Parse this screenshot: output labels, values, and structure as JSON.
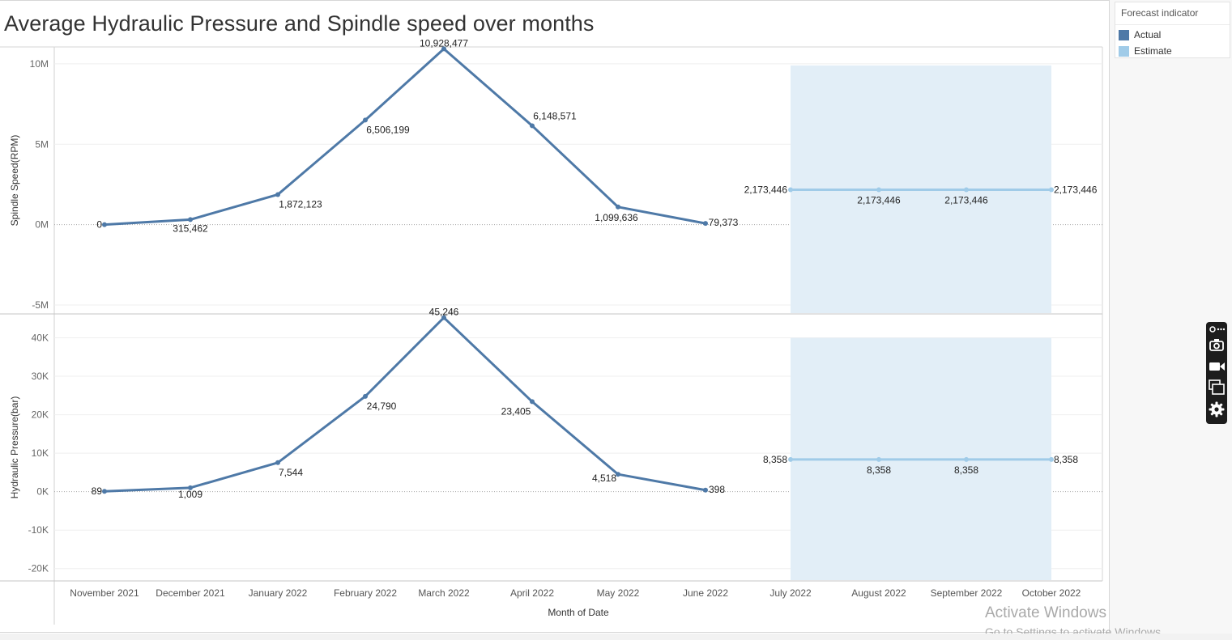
{
  "title": "Average Hydraulic Pressure and Spindle speed over months",
  "legend": {
    "title": "Forecast indicator",
    "items": [
      {
        "label": "Actual",
        "color": "#4e79a7"
      },
      {
        "label": "Estimate",
        "color": "#a0cbe8"
      }
    ]
  },
  "colors": {
    "actual": "#4e79a7",
    "estimate": "#a0cbe8",
    "forecast_band": "#e2eef7"
  },
  "watermark": {
    "line1": "Activate Windows",
    "line2": "Go to Settings to activate Windows."
  },
  "toolbar_icons": [
    "pin-icon",
    "more-icon",
    "camera-icon",
    "video-icon",
    "window-icon",
    "gear-icon"
  ],
  "chart_data": {
    "type": "line",
    "title": "Average Hydraulic Pressure and Spindle speed over months",
    "xlabel": "Month of Date",
    "categories": [
      "November 2021",
      "December 2021",
      "January 2022",
      "February 2022",
      "March 2022",
      "April 2022",
      "May 2022",
      "June 2022",
      "July 2022",
      "August 2022",
      "September 2022",
      "October 2022"
    ],
    "panels": [
      {
        "ylabel": "Spindle Speed(RPM)",
        "ylim": [
          -5500000,
          11000000
        ],
        "ticks": [
          {
            "v": 10000000,
            "label": "10M"
          },
          {
            "v": 5000000,
            "label": "5M"
          },
          {
            "v": 0,
            "label": "0M"
          },
          {
            "v": -5000000,
            "label": "-5M"
          }
        ],
        "actual": [
          0,
          315462,
          1872123,
          6506199,
          10928477,
          6148571,
          1099636,
          79373
        ],
        "actual_labels": [
          "0",
          "315,462",
          "1,872,123",
          "6,506,199",
          "10,928,477",
          "6,148,571",
          "1,099,636",
          "79,373"
        ],
        "estimate": [
          2173446,
          2173446,
          2173446,
          2173446
        ],
        "estimate_labels": [
          "2,173,446",
          "2,173,446",
          "2,173,446",
          "2,173,446"
        ],
        "band": [
          -5500000,
          9900000
        ]
      },
      {
        "ylabel": "Hydraulic Pressure(bar)",
        "ylim": [
          -23000,
          46000
        ],
        "ticks": [
          {
            "v": 40000,
            "label": "40K"
          },
          {
            "v": 30000,
            "label": "30K"
          },
          {
            "v": 20000,
            "label": "20K"
          },
          {
            "v": 10000,
            "label": "10K"
          },
          {
            "v": 0,
            "label": "0K"
          },
          {
            "v": -10000,
            "label": "-10K"
          },
          {
            "v": -20000,
            "label": "-20K"
          }
        ],
        "actual": [
          89,
          1009,
          7544,
          24790,
          45246,
          23405,
          4518,
          398
        ],
        "actual_labels": [
          "89",
          "1,009",
          "7,544",
          "24,790",
          "45,246",
          "23,405",
          "4,518",
          "398"
        ],
        "estimate": [
          8358,
          8358,
          8358,
          8358
        ],
        "estimate_labels": [
          "8,358",
          "8,358",
          "8,358",
          "8,358"
        ],
        "band": [
          -23000,
          40000
        ]
      }
    ]
  }
}
